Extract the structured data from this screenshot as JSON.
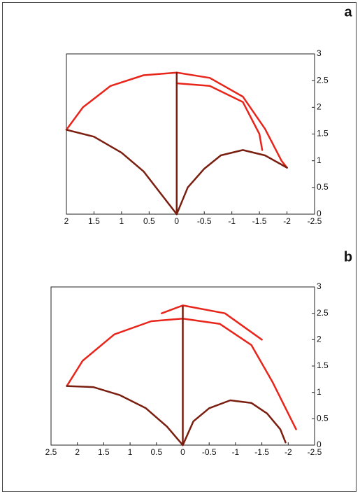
{
  "chart_data": [
    {
      "type": "line",
      "title": "a",
      "xlim": [
        2,
        -2.5
      ],
      "xticks": [
        2,
        1.5,
        1,
        0.5,
        0,
        -0.5,
        -1,
        -1.5,
        -2,
        -2.5
      ],
      "ylim": [
        0,
        3
      ],
      "yticks": [
        0,
        0.5,
        1,
        1.5,
        2,
        2.5,
        3
      ],
      "series": [
        {
          "color": "#e8251b",
          "x": [
            2.0,
            1.7,
            1.2,
            0.6,
            0,
            -0.6,
            -1.2,
            -1.6,
            -1.9,
            -2.0
          ],
          "values": [
            1.58,
            2.0,
            2.4,
            2.6,
            2.65,
            2.55,
            2.2,
            1.6,
            1.0,
            0.87
          ]
        },
        {
          "color": "#e8251b",
          "x": [
            0,
            -0.6,
            -1.2,
            -1.5,
            -1.55
          ],
          "values": [
            2.45,
            2.4,
            2.1,
            1.5,
            1.2
          ]
        },
        {
          "color": "#7a1e10",
          "x": [
            0,
            0,
            0,
            0
          ],
          "values": [
            0,
            1.0,
            2.0,
            2.65
          ]
        },
        {
          "color": "#7a1e10",
          "x": [
            0,
            0.3,
            0.6,
            1.0,
            1.5,
            2.0
          ],
          "values": [
            0,
            0.4,
            0.8,
            1.15,
            1.45,
            1.58
          ]
        },
        {
          "color": "#7a1e10",
          "x": [
            0,
            -0.2,
            -0.5,
            -0.8,
            -1.2,
            -1.6,
            -2.0
          ],
          "values": [
            0,
            0.5,
            0.85,
            1.1,
            1.2,
            1.1,
            0.87
          ]
        }
      ]
    },
    {
      "type": "line",
      "title": "b",
      "xlim": [
        2.5,
        -2.5
      ],
      "xticks": [
        2.5,
        2,
        1.5,
        1,
        0.5,
        0,
        -0.5,
        -1,
        -1.5,
        -2,
        -2.5
      ],
      "ylim": [
        0,
        3
      ],
      "yticks": [
        0,
        0.5,
        1,
        1.5,
        2,
        2.5,
        3
      ],
      "series": [
        {
          "color": "#e8251b",
          "x": [
            2.2,
            1.9,
            1.3,
            0.6,
            0,
            -0.7,
            -1.3,
            -1.7,
            -2.0,
            -2.15
          ],
          "values": [
            1.12,
            1.6,
            2.1,
            2.35,
            2.4,
            2.3,
            1.9,
            1.2,
            0.6,
            0.3
          ]
        },
        {
          "color": "#e8251b",
          "x": [
            0.4,
            0,
            -0.8,
            -1.5
          ],
          "values": [
            2.5,
            2.65,
            2.5,
            2.0
          ]
        },
        {
          "color": "#7a1e10",
          "x": [
            0,
            0,
            0,
            0
          ],
          "values": [
            0,
            1.0,
            2.0,
            2.63
          ]
        },
        {
          "color": "#7a1e10",
          "x": [
            0,
            0.3,
            0.7,
            1.2,
            1.7,
            2.2
          ],
          "values": [
            0,
            0.35,
            0.7,
            0.95,
            1.1,
            1.12
          ]
        },
        {
          "color": "#7a1e10",
          "x": [
            0,
            -0.2,
            -0.5,
            -0.9,
            -1.3,
            -1.6,
            -1.85,
            -1.95
          ],
          "values": [
            0,
            0.45,
            0.7,
            0.85,
            0.8,
            0.6,
            0.3,
            0.05
          ]
        }
      ]
    }
  ]
}
